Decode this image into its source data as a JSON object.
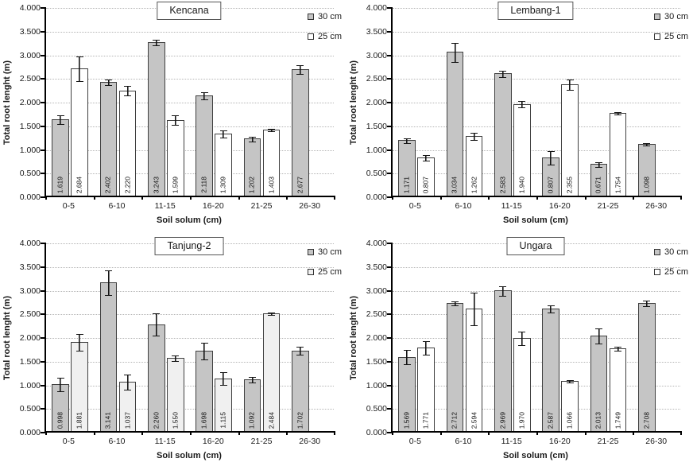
{
  "shared": {
    "ylabel": "Total root lenght (m)",
    "xlabel": "Soil solum (cm)",
    "yticks": [
      "0.000",
      "0.500",
      "1.000",
      "1.500",
      "2.000",
      "2.500",
      "3.000",
      "3.500",
      "4.000"
    ],
    "ylim": [
      0,
      4
    ],
    "grid": "dotted-horizontal",
    "legend_position": "top-right",
    "colors": {
      "bar_gray": "#c5c5c5",
      "bar_white": "#ffffff",
      "bar_border": "#3f3f3f",
      "gridline": "#b5b5b5",
      "axis": "#000000",
      "text": "#1a1a1a"
    }
  },
  "chart_data": [
    {
      "type": "bar",
      "title": "Kencana",
      "xlabel": "Soil solum (cm)",
      "ylabel": "Total root lenght (m)",
      "ylim": [
        0,
        4
      ],
      "categories": [
        "0-5",
        "6-10",
        "11-15",
        "16-20",
        "21-25",
        "26-30"
      ],
      "series": [
        {
          "name": "30 cm",
          "fill": "#c5c5c5",
          "values": [
            1.619,
            2.402,
            3.243,
            2.118,
            1.202,
            2.677
          ],
          "labels": [
            "1.619",
            "2.402",
            "3.243",
            "2.118",
            "1.202",
            "2.677"
          ],
          "errors": [
            0.1,
            0.07,
            0.06,
            0.09,
            0.06,
            0.1
          ]
        },
        {
          "name": "25 cm",
          "fill": "#ffffff",
          "values": [
            2.684,
            2.22,
            1.599,
            1.309,
            1.403,
            null
          ],
          "labels": [
            "2.684",
            "2.220",
            "1.599",
            "1.309",
            "1.403",
            null
          ],
          "errors": [
            0.27,
            0.11,
            0.11,
            0.08,
            0.02,
            null
          ]
        }
      ]
    },
    {
      "type": "bar",
      "title": "Lembang-1",
      "xlabel": "Soil solum (cm)",
      "ylabel": "Total root lenght (m)",
      "ylim": [
        0,
        4
      ],
      "categories": [
        "0-5",
        "6-10",
        "11-15",
        "16-20",
        "21-25",
        "26-30"
      ],
      "series": [
        {
          "name": "30 cm",
          "fill": "#c5c5c5",
          "values": [
            1.171,
            3.034,
            2.583,
            0.807,
            0.671,
            1.098
          ],
          "labels": [
            "1.171",
            "3.034",
            "2.583",
            "0.807",
            "0.671",
            "1.098"
          ],
          "errors": [
            0.06,
            0.21,
            0.08,
            0.15,
            0.06,
            0.015
          ]
        },
        {
          "name": "25 cm",
          "fill": "#ffffff",
          "values": [
            0.807,
            1.262,
            1.94,
            2.355,
            1.754,
            null
          ],
          "labels": [
            "0.807",
            "1.262",
            "1.940",
            "2.355",
            "1.754",
            null
          ],
          "errors": [
            0.06,
            0.08,
            0.07,
            0.12,
            0.03,
            null
          ]
        }
      ]
    },
    {
      "type": "bar",
      "title": "Tanjung-2",
      "xlabel": "Soil solum (cm)",
      "ylabel": "Total root lenght (m)",
      "ylim": [
        0,
        4
      ],
      "categories": [
        "0-5",
        "6-10",
        "11-15",
        "16-20",
        "21-25",
        "26-30"
      ],
      "series": [
        {
          "name": "30 cm",
          "fill": "#c5c5c5",
          "values": [
            0.998,
            3.141,
            2.26,
            1.698,
            1.092,
            1.702
          ],
          "labels": [
            "0.998",
            "3.141",
            "2.260",
            "1.698",
            "1.092",
            "1.702"
          ],
          "errors": [
            0.15,
            0.27,
            0.25,
            0.18,
            0.07,
            0.09
          ]
        },
        {
          "name": "25 cm",
          "fill": "#f0f0f0",
          "values": [
            1.881,
            1.037,
            1.55,
            1.115,
            2.484,
            null
          ],
          "labels": [
            "1.881",
            "1.037",
            "1.550",
            "1.115",
            "2.484",
            null
          ],
          "errors": [
            0.19,
            0.17,
            0.07,
            0.14,
            0.015,
            null
          ]
        }
      ]
    },
    {
      "type": "bar",
      "title": "Ungara",
      "xlabel": "Soil solum (cm)",
      "ylabel": "Total root lenght (m)",
      "ylim": [
        0,
        4
      ],
      "categories": [
        "0-5",
        "6-10",
        "11-15",
        "16-20",
        "21-25",
        "26-30"
      ],
      "series": [
        {
          "name": "30 cm",
          "fill": "#c5c5c5",
          "values": [
            1.569,
            2.712,
            2.969,
            2.587,
            2.013,
            2.708
          ],
          "labels": [
            "1.569",
            "2.712",
            "2.969",
            "2.587",
            "2.013",
            "2.708"
          ],
          "errors": [
            0.16,
            0.05,
            0.11,
            0.08,
            0.17,
            0.07
          ]
        },
        {
          "name": "25 cm",
          "fill": "#ffffff",
          "values": [
            1.771,
            2.594,
            1.97,
            1.066,
            1.749,
            null
          ],
          "labels": [
            "1.771",
            "2.594",
            "1.970",
            "1.066",
            "1.749",
            null
          ],
          "errors": [
            0.15,
            0.35,
            0.15,
            0.03,
            0.05,
            null
          ]
        }
      ]
    }
  ]
}
